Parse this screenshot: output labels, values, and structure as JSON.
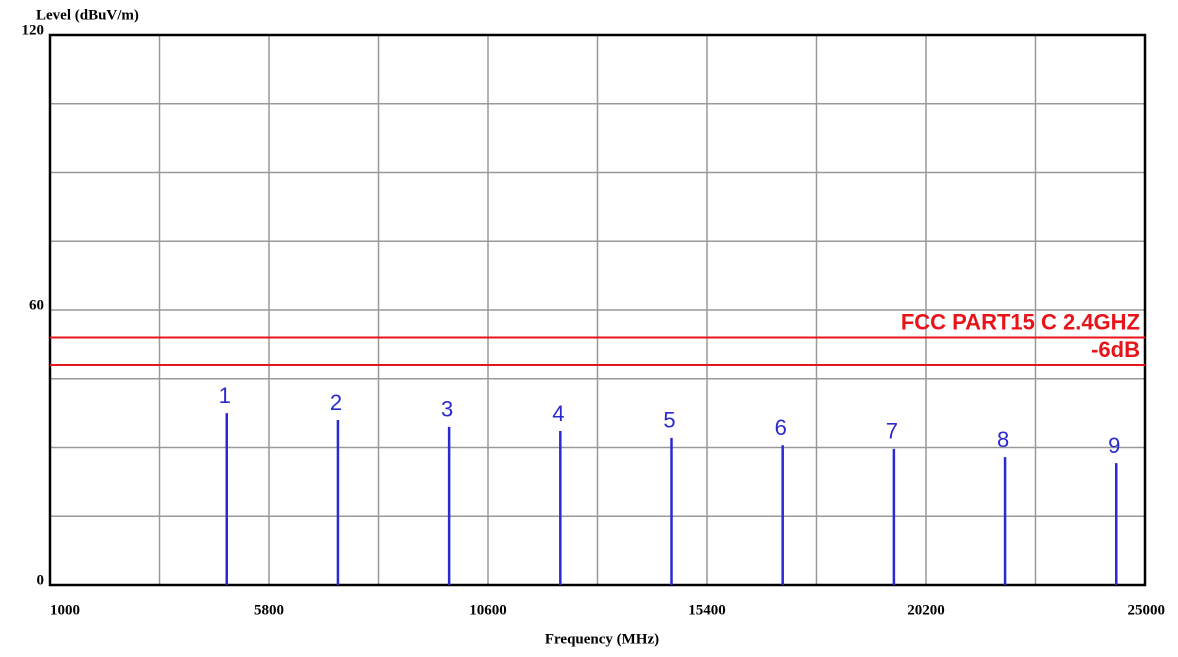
{
  "chart_data": {
    "type": "spike",
    "y_label": "Level (dBuV/m)",
    "x_label": "Frequency (MHz)",
    "xlim": [
      1000,
      25000
    ],
    "xticks": [
      1000,
      5800,
      10600,
      15400,
      20200,
      25000
    ],
    "xminor": [
      3400,
      8200,
      13000,
      17800,
      22600
    ],
    "ylim": [
      0,
      120
    ],
    "yticks": [
      0,
      60,
      120
    ],
    "yminor": [
      15,
      30,
      45,
      75,
      90,
      105
    ],
    "grid": true,
    "color": "#2a2ad0",
    "x": [
      4874,
      7311,
      9748,
      12185,
      14622,
      17059,
      19496,
      21933,
      24370
    ],
    "values": [
      37.5,
      36,
      34.5,
      33.6,
      32.1,
      30.5,
      29.7,
      27.9,
      26.6
    ],
    "marker_labels": [
      "1",
      "2",
      "3",
      "4",
      "5",
      "6",
      "7",
      "8",
      "9"
    ],
    "limits": [
      {
        "name": "FCC PART15 C 2.4GHZ",
        "value": 54,
        "color": "#e8141a"
      },
      {
        "name": "-6dB",
        "value": 48,
        "color": "#e8141a"
      }
    ]
  }
}
